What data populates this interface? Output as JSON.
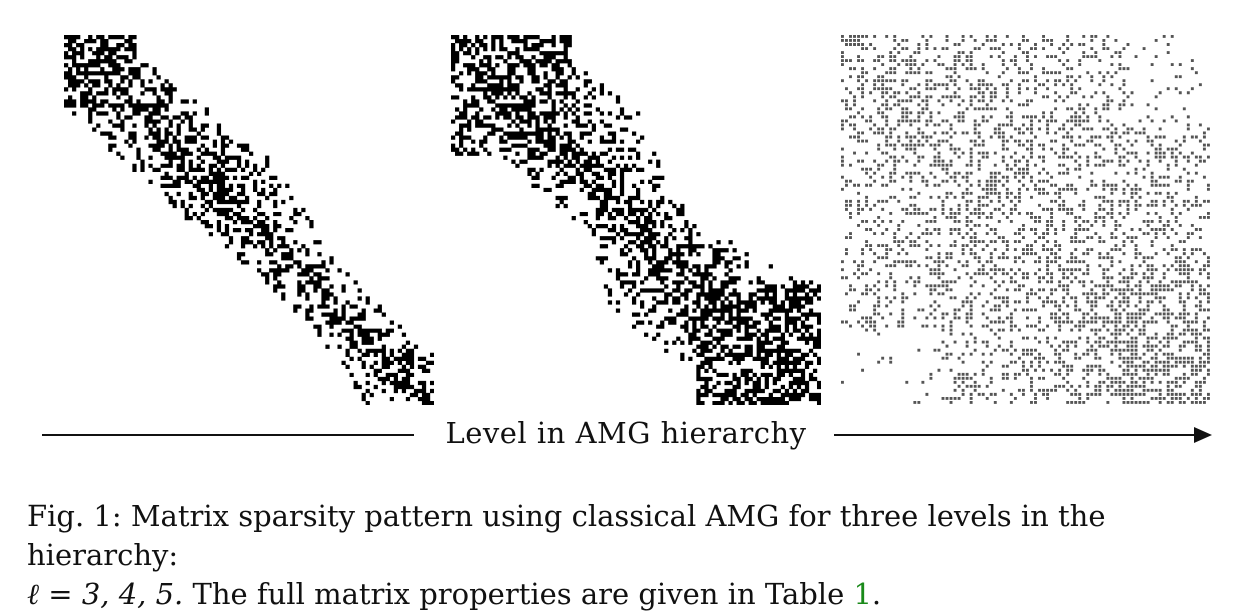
{
  "figure": {
    "axis_label": "Level in AMG hierarchy",
    "caption": {
      "label": "Fig. 1:",
      "text": "Matrix sparsity pattern using classical AMG for three levels in the hierarchy:",
      "math": "ℓ = 3, 4, 5.",
      "text2": "The full matrix properties are given in Table",
      "ref": "1",
      "end": "."
    },
    "panels": [
      {
        "level": 3,
        "pattern": "banded-dense",
        "ink": "#000000"
      },
      {
        "level": 4,
        "pattern": "banded-wider",
        "ink": "#000000"
      },
      {
        "level": 5,
        "pattern": "scattered-fill",
        "ink": "#555555"
      }
    ]
  }
}
